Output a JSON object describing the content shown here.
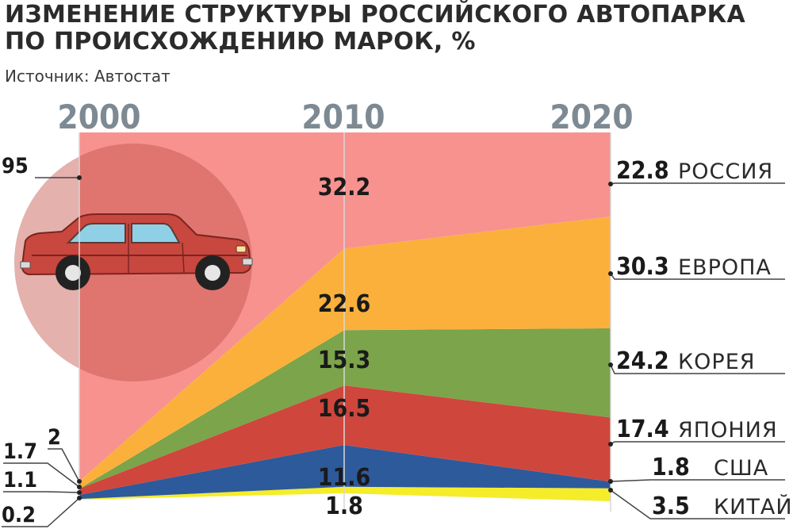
{
  "title_line1": "ИЗМЕНЕНИЕ СТРУКТУРЫ РОССИЙСКОГО АВТОПАРКА",
  "title_line2": "ПО ПРОИСХОЖДЕНИЮ МАРОК, %",
  "source": "Источник: Автостат",
  "chart_data": {
    "type": "area",
    "stacked": true,
    "x": [
      "2000",
      "2010",
      "2020"
    ],
    "series": [
      {
        "name": "КИТАЙ",
        "color": "#f5ec2a",
        "values": [
          0.2,
          1.8,
          3.5
        ],
        "labels": [
          "0.2",
          "1.8",
          "3.5"
        ]
      },
      {
        "name": "США",
        "color": "#2d5a9b",
        "values": [
          1.1,
          11.6,
          1.8
        ],
        "labels": [
          "1.1",
          "11.6",
          "1.8"
        ]
      },
      {
        "name": "ЯПОНИЯ",
        "color": "#cf463c",
        "values": [
          1.7,
          16.5,
          17.4
        ],
        "labels": [
          "1.7",
          "16.5",
          "17.4"
        ]
      },
      {
        "name": "КОРЕЯ",
        "color": "#7ca44a",
        "values": [
          0,
          15.3,
          24.2
        ],
        "labels": [
          "",
          "15.3",
          "24.2"
        ]
      },
      {
        "name": "ЕВРОПА",
        "color": "#fbb03c",
        "values": [
          2,
          22.6,
          30.3
        ],
        "labels": [
          "2",
          "22.6",
          "30.3"
        ]
      },
      {
        "name": "РОССИЯ",
        "color": "#f7928f",
        "values": [
          95,
          32.2,
          22.8
        ],
        "labels": [
          "95",
          "32.2",
          "22.8"
        ]
      }
    ]
  }
}
